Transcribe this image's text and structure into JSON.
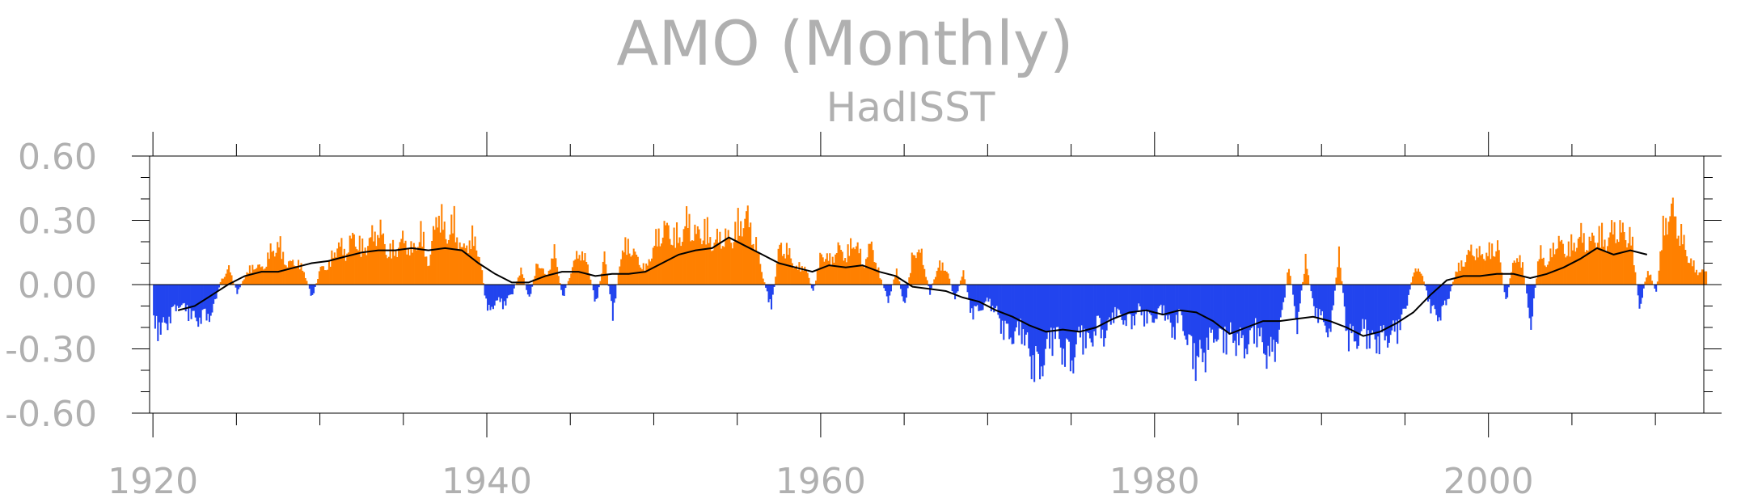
{
  "chart_data": {
    "type": "bar",
    "title": "AMO (Monthly)",
    "subtitle": "HadISST",
    "x_ticks": [
      "1920",
      "1940",
      "1960",
      "1980",
      "2000"
    ],
    "y_ticks": [
      "0.60",
      "0.30",
      "0.00",
      "-0.30",
      "-0.60"
    ],
    "xlim": [
      1919.8,
      2012.9
    ],
    "ylim": [
      -0.6,
      0.6
    ],
    "positive_color": "#ff8000",
    "negative_color": "#2244ee",
    "smooth_color": "#000000",
    "monthly_anomaly_envelope": {
      "x": [
        1920,
        1920.5,
        1921,
        1921.5,
        1922,
        1922.5,
        1923,
        1923.5,
        1924,
        1924.5,
        1925,
        1925.5,
        1926,
        1926.5,
        1927,
        1927.5,
        1928,
        1928.5,
        1929,
        1929.5,
        1930,
        1930.5,
        1931,
        1931.5,
        1932,
        1932.5,
        1933,
        1933.5,
        1934,
        1934.5,
        1935,
        1935.5,
        1936,
        1936.5,
        1937,
        1937.5,
        1938,
        1938.5,
        1939,
        1939.5,
        1940,
        1940.5,
        1941,
        1941.5,
        1942,
        1942.5,
        1943,
        1943.5,
        1944,
        1944.5,
        1945,
        1945.5,
        1946,
        1946.5,
        1947,
        1947.5,
        1948,
        1948.5,
        1949,
        1949.5,
        1950,
        1950.5,
        1951,
        1951.5,
        1952,
        1952.5,
        1953,
        1953.5,
        1954,
        1954.5,
        1955,
        1955.5,
        1956,
        1956.5,
        1957,
        1957.5,
        1958,
        1958.5,
        1959,
        1959.5,
        1960,
        1960.5,
        1961,
        1961.5,
        1962,
        1962.5,
        1963,
        1963.5,
        1964,
        1964.5,
        1965,
        1965.5,
        1966,
        1966.5,
        1967,
        1967.5,
        1968,
        1968.5,
        1969,
        1969.5,
        1970,
        1970.5,
        1971,
        1971.5,
        1972,
        1972.5,
        1973,
        1973.5,
        1974,
        1974.5,
        1975,
        1975.5,
        1976,
        1976.5,
        1977,
        1977.5,
        1978,
        1978.5,
        1979,
        1979.5,
        1980,
        1980.5,
        1981,
        1981.5,
        1982,
        1982.5,
        1983,
        1983.5,
        1984,
        1984.5,
        1985,
        1985.5,
        1986,
        1986.5,
        1987,
        1987.5,
        1988,
        1988.5,
        1989,
        1989.5,
        1990,
        1990.5,
        1991,
        1991.5,
        1992,
        1992.5,
        1993,
        1993.5,
        1994,
        1994.5,
        1995,
        1995.5,
        1996,
        1996.5,
        1997,
        1997.5,
        1998,
        1998.5,
        1999,
        1999.5,
        2000,
        2000.5,
        2001,
        2001.5,
        2002,
        2002.5,
        2003,
        2003.5,
        2004,
        2004.5,
        2005,
        2005.5,
        2006,
        2006.5,
        2007,
        2007.5,
        2008,
        2008.5,
        2009,
        2009.5,
        2010,
        2010.5,
        2011,
        2011.5,
        2012,
        2012.5
      ],
      "y": [
        -0.25,
        -0.28,
        -0.2,
        -0.12,
        -0.16,
        -0.22,
        -0.2,
        -0.18,
        0.02,
        0.1,
        -0.05,
        0.06,
        0.12,
        0.1,
        0.2,
        0.25,
        0.12,
        0.15,
        0.08,
        -0.08,
        0.1,
        0.12,
        0.25,
        0.2,
        0.3,
        0.22,
        0.28,
        0.35,
        0.2,
        0.22,
        0.28,
        0.2,
        0.32,
        0.12,
        0.48,
        0.3,
        0.38,
        0.2,
        0.3,
        0.2,
        -0.18,
        -0.1,
        -0.12,
        -0.05,
        0.1,
        -0.1,
        0.15,
        0.05,
        0.2,
        -0.08,
        0.08,
        0.22,
        0.12,
        -0.12,
        0.18,
        -0.2,
        0.2,
        0.25,
        0.15,
        0.1,
        0.25,
        0.35,
        0.32,
        0.28,
        0.4,
        0.3,
        0.35,
        0.25,
        0.3,
        0.28,
        0.36,
        0.42,
        0.28,
        0.05,
        -0.15,
        0.25,
        0.2,
        0.1,
        0.12,
        -0.05,
        0.2,
        0.15,
        0.22,
        0.18,
        0.28,
        0.12,
        0.25,
        0.05,
        -0.1,
        0.1,
        -0.15,
        0.22,
        0.18,
        -0.05,
        0.12,
        0.1,
        -0.1,
        0.08,
        -0.18,
        -0.15,
        -0.1,
        -0.18,
        -0.3,
        -0.32,
        -0.28,
        -0.45,
        -0.55,
        -0.4,
        -0.3,
        -0.42,
        -0.48,
        -0.3,
        -0.38,
        -0.25,
        -0.32,
        -0.18,
        -0.2,
        -0.25,
        -0.15,
        -0.22,
        -0.2,
        -0.15,
        -0.3,
        -0.18,
        -0.38,
        -0.48,
        -0.42,
        -0.3,
        -0.35,
        -0.32,
        -0.36,
        -0.38,
        -0.28,
        -0.4,
        -0.45,
        -0.25,
        0.12,
        -0.25,
        0.15,
        -0.15,
        -0.22,
        -0.3,
        0.2,
        -0.32,
        -0.35,
        -0.28,
        -0.36,
        -0.34,
        -0.32,
        -0.28,
        -0.15,
        0.1,
        0.06,
        -0.15,
        -0.2,
        -0.1,
        0.08,
        0.15,
        0.22,
        0.18,
        0.2,
        0.25,
        -0.12,
        0.18,
        0.12,
        -0.25,
        0.2,
        0.12,
        0.28,
        0.22,
        0.24,
        0.3,
        0.25,
        0.32,
        0.26,
        0.35,
        0.32,
        0.3,
        -0.15,
        0.1,
        -0.05,
        0.4,
        0.45,
        0.3,
        0.15,
        0.08
      ]
    },
    "smooth": {
      "x": [
        1921.5,
        1922.5,
        1923.5,
        1924.5,
        1925.5,
        1926.5,
        1927.5,
        1928.5,
        1929.5,
        1930.5,
        1931.5,
        1932.5,
        1933.5,
        1934.5,
        1935.5,
        1936.5,
        1937.5,
        1938.5,
        1939.5,
        1940.5,
        1941.5,
        1942.5,
        1943.5,
        1944.5,
        1945.5,
        1946.5,
        1947.5,
        1948.5,
        1949.5,
        1950.5,
        1951.5,
        1952.5,
        1953.5,
        1954.5,
        1955.5,
        1956.5,
        1957.5,
        1958.5,
        1959.5,
        1960.5,
        1961.5,
        1962.5,
        1963.5,
        1964.5,
        1965.5,
        1966.5,
        1967.5,
        1968.5,
        1969.5,
        1970.5,
        1971.5,
        1972.5,
        1973.5,
        1974.5,
        1975.5,
        1976.5,
        1977.5,
        1978.5,
        1979.5,
        1980.5,
        1981.5,
        1982.5,
        1983.5,
        1984.5,
        1985.5,
        1986.5,
        1987.5,
        1988.5,
        1989.5,
        1990.5,
        1991.5,
        1992.5,
        1993.5,
        1994.5,
        1995.5,
        1996.5,
        1997.5,
        1998.5,
        1999.5,
        2000.5,
        2001.5,
        2002.5,
        2003.5,
        2004.5,
        2005.5,
        2006.5,
        2007.5,
        2008.5,
        2009.5
      ],
      "y": [
        -0.12,
        -0.1,
        -0.05,
        0.0,
        0.04,
        0.06,
        0.06,
        0.08,
        0.1,
        0.11,
        0.13,
        0.15,
        0.16,
        0.16,
        0.17,
        0.16,
        0.17,
        0.16,
        0.1,
        0.05,
        0.01,
        0.01,
        0.04,
        0.06,
        0.06,
        0.04,
        0.05,
        0.05,
        0.06,
        0.1,
        0.14,
        0.16,
        0.17,
        0.22,
        0.18,
        0.14,
        0.1,
        0.08,
        0.06,
        0.09,
        0.08,
        0.09,
        0.06,
        0.04,
        -0.01,
        -0.02,
        -0.03,
        -0.06,
        -0.08,
        -0.12,
        -0.15,
        -0.19,
        -0.22,
        -0.21,
        -0.22,
        -0.2,
        -0.16,
        -0.13,
        -0.12,
        -0.14,
        -0.12,
        -0.13,
        -0.17,
        -0.23,
        -0.2,
        -0.17,
        -0.17,
        -0.16,
        -0.15,
        -0.17,
        -0.2,
        -0.24,
        -0.22,
        -0.18,
        -0.13,
        -0.05,
        0.02,
        0.04,
        0.04,
        0.05,
        0.05,
        0.03,
        0.05,
        0.08,
        0.12,
        0.17,
        0.14,
        0.16,
        0.14
      ]
    }
  }
}
